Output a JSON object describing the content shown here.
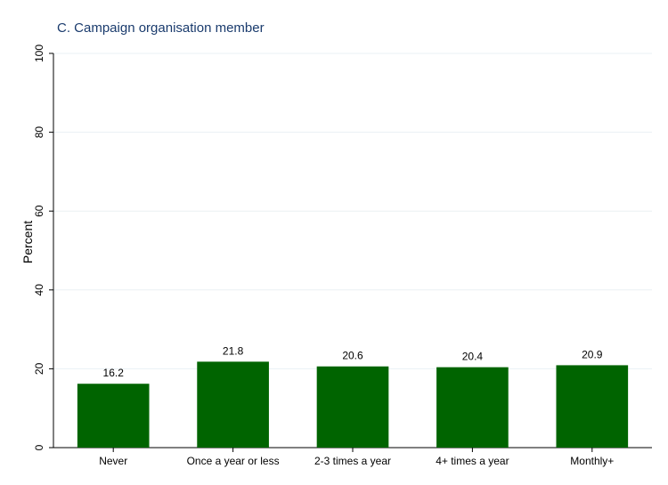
{
  "chart_data": {
    "type": "bar",
    "title": "C. Campaign organisation member",
    "xlabel": "",
    "ylabel": "Percent",
    "ylim": [
      0,
      100
    ],
    "yticks": [
      "0",
      "20",
      "40",
      "60",
      "80",
      "100"
    ],
    "categories": [
      "Never",
      "Once a year or less",
      "2-3 times a year",
      "4+ times a year",
      "Monthly+"
    ],
    "values": [
      16.2,
      21.8,
      20.6,
      20.4,
      20.9
    ],
    "value_labels": [
      "16.2",
      "21.8",
      "20.6",
      "20.4",
      "20.9"
    ],
    "bar_color": "#006400",
    "grid": true,
    "grid_color": "#eaf0f4"
  }
}
